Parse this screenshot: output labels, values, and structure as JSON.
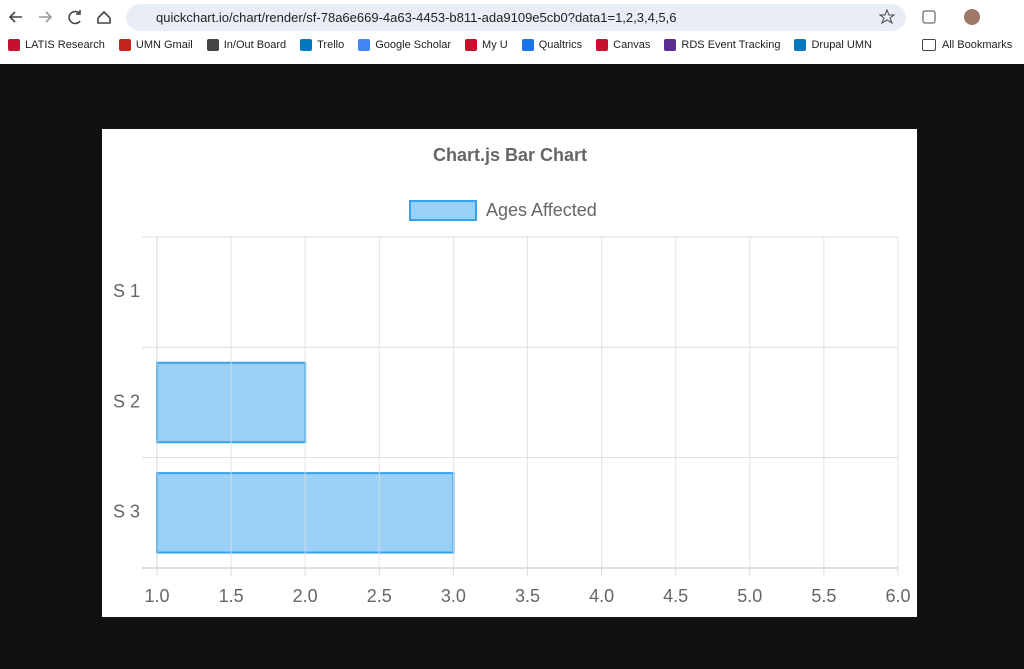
{
  "browser": {
    "url": "quickchart.io/chart/render/sf-78a6e669-4a63-4453-b811-ada9109e5cb0?data1=1,2,3,4,5,6",
    "bookmarks": [
      "LATIS Research",
      "UMN Gmail",
      "In/Out Board",
      "Trello",
      "Google Scholar",
      "My U",
      "Qualtrics",
      "Canvas",
      "RDS Event Tracking",
      "Drupal UMN"
    ],
    "all_bookmarks": "All Bookmarks"
  },
  "chart_data": {
    "type": "hbar",
    "title": "Chart.js Bar Chart",
    "categories": [
      "S 1",
      "S 2",
      "S 3"
    ],
    "series": [
      {
        "name": "Ages Affected",
        "color": "#9ad0f5",
        "border_color": "#36a2eb",
        "values": [
          1,
          2,
          3
        ]
      }
    ],
    "xlim": [
      1,
      6
    ],
    "xticks": [
      {
        "value": 1,
        "label": "1.0"
      },
      1.5,
      {
        "value": 2,
        "label": "2.0"
      },
      2.5,
      {
        "value": 3,
        "label": "3.0"
      },
      3.5,
      {
        "value": 4,
        "label": "4.0"
      },
      4.5,
      {
        "value": 5,
        "label": "5.0"
      },
      5.5,
      {
        "value": 6,
        "label": "6.0"
      }
    ],
    "grid": true
  }
}
